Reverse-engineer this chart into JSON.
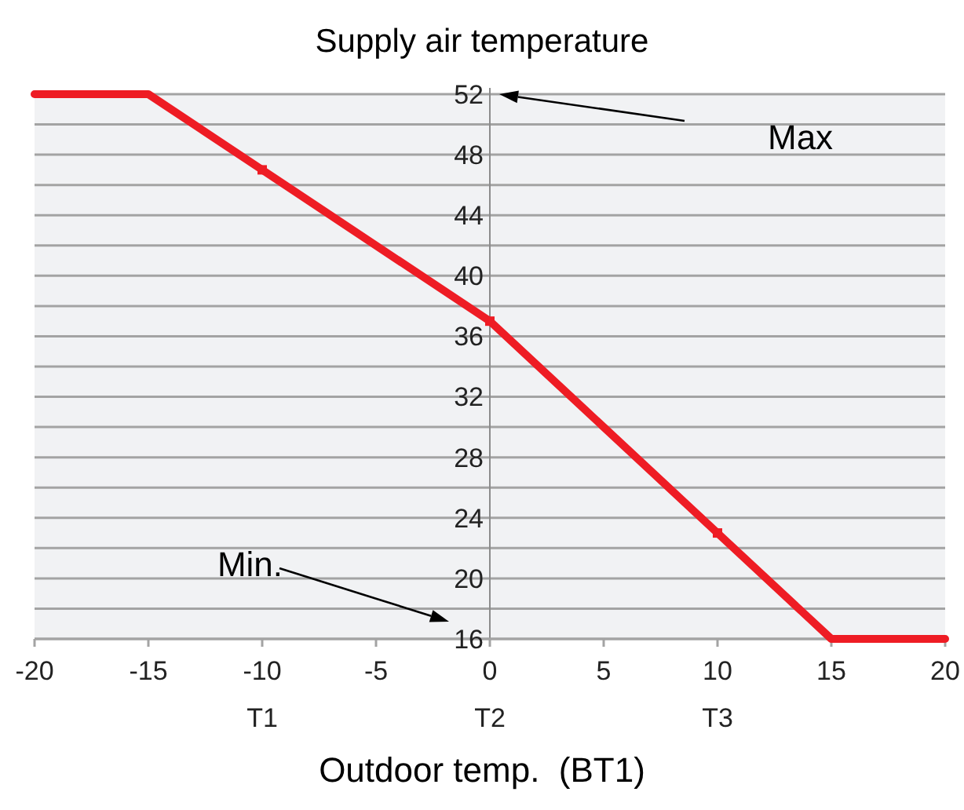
{
  "chart_data": {
    "type": "line",
    "title": "Supply air temperature",
    "xlabel": "Outdoor temp.  (BT1)",
    "x": [
      -20,
      -15,
      -10,
      0,
      10,
      15,
      20
    ],
    "series": [
      {
        "color": "#ee1c24",
        "values": [
          52,
          52,
          47,
          37,
          23,
          16,
          16
        ],
        "marker": "none",
        "line_style": "solid"
      },
      {
        "type": "scatter",
        "color": "#ee1c24",
        "x": [
          -10,
          0,
          10
        ],
        "values": [
          47,
          37,
          23
        ],
        "marker": "square"
      }
    ],
    "xlim": [
      -20,
      20
    ],
    "xticks": [
      -20,
      -15,
      -10,
      -5,
      0,
      5,
      10,
      15,
      20
    ],
    "ylim": [
      16,
      52
    ],
    "yticks": [
      16,
      {
        "value": 18,
        "label": null
      },
      20,
      {
        "value": 22,
        "label": null
      },
      24,
      {
        "value": 26,
        "label": null
      },
      28,
      {
        "value": 30,
        "label": null
      },
      32,
      {
        "value": 34,
        "label": null
      },
      36,
      {
        "value": 38,
        "label": null
      },
      40,
      {
        "value": 42,
        "label": null
      },
      44,
      {
        "value": 46,
        "label": null
      },
      48,
      {
        "value": 50,
        "label": null
      },
      52
    ],
    "grid": "y",
    "annotations": [
      "Max",
      "Min.",
      "T1",
      "T2",
      "T3"
    ]
  }
}
